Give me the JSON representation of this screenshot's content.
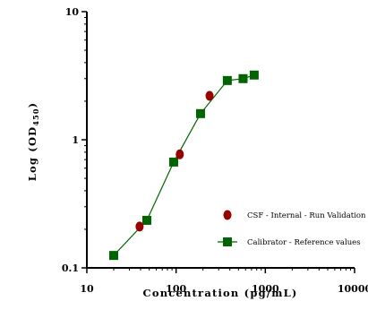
{
  "chart_data": {
    "type": "scatter",
    "title": "",
    "xlabel": "Concentration (pg/mL)",
    "ylabel": "Log (OD450)",
    "xscale": "log",
    "yscale": "log",
    "xlim": [
      10,
      10000
    ],
    "ylim": [
      0.1,
      10
    ],
    "x_ticks": [
      "10",
      "100",
      "1000",
      "10000"
    ],
    "y_ticks": [
      "0.1",
      "1",
      "10"
    ],
    "grid": false,
    "legend_position": "bottom-right",
    "series": [
      {
        "name": "CSF - Internal - Run Validation",
        "marker": "circle",
        "connected": false,
        "color": "#990000",
        "points": [
          {
            "x": 39,
            "y": 0.21
          },
          {
            "x": 110,
            "y": 0.77
          },
          {
            "x": 237,
            "y": 2.2
          }
        ]
      },
      {
        "name": "Calibrator - Reference values",
        "marker": "square",
        "connected": true,
        "color": "#006400",
        "points": [
          {
            "x": 20,
            "y": 0.125
          },
          {
            "x": 47,
            "y": 0.235
          },
          {
            "x": 94,
            "y": 0.67
          },
          {
            "x": 188,
            "y": 1.6
          },
          {
            "x": 375,
            "y": 2.9
          },
          {
            "x": 563,
            "y": 3.0
          },
          {
            "x": 750,
            "y": 3.2
          }
        ]
      }
    ]
  }
}
